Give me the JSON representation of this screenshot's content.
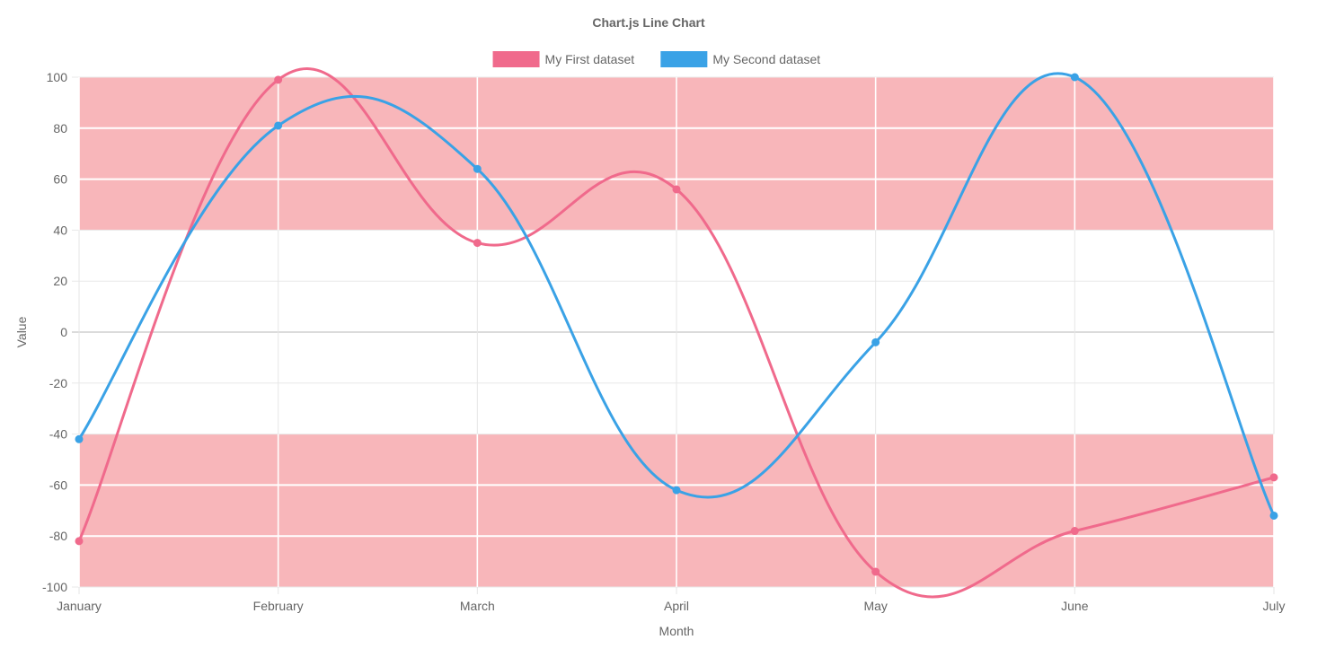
{
  "chart_data": {
    "type": "line",
    "title": "Chart.js Line Chart",
    "xlabel": "Month",
    "ylabel": "Value",
    "categories": [
      "January",
      "February",
      "March",
      "April",
      "May",
      "June",
      "July"
    ],
    "ylim": [
      -100,
      100
    ],
    "y_ticks": [
      100,
      80,
      60,
      40,
      20,
      0,
      -20,
      -40,
      -60,
      -80,
      -100
    ],
    "grid": true,
    "legend_position": "top",
    "shaded_bands": [
      {
        "from": 40,
        "to": 100,
        "color": "#f8b6ba"
      },
      {
        "from": -100,
        "to": -40,
        "color": "#f8b6ba"
      }
    ],
    "series": [
      {
        "name": "My First dataset",
        "color": "#f06a8c",
        "values": [
          -82,
          99,
          35,
          56,
          -94,
          -78,
          -57
        ]
      },
      {
        "name": "My Second dataset",
        "color": "#3aa2e6",
        "values": [
          -42,
          81,
          64,
          -62,
          -4,
          100,
          -72
        ]
      }
    ]
  }
}
